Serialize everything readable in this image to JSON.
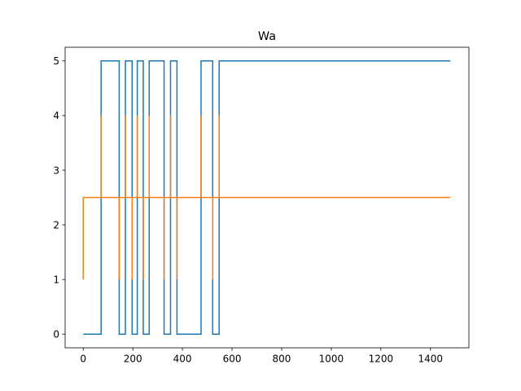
{
  "chart_data": {
    "type": "line",
    "title": "Wa",
    "xlabel": "",
    "ylabel": "",
    "xlim": [
      -73,
      1555
    ],
    "ylim": [
      -0.25,
      5.25
    ],
    "xticks": [
      0,
      200,
      400,
      600,
      800,
      1000,
      1200,
      1400
    ],
    "yticks": [
      0,
      1,
      2,
      3,
      4,
      5
    ],
    "grid": false,
    "series": [
      {
        "color": "#1f77b4",
        "step": true,
        "points": [
          [
            0,
            0
          ],
          [
            72,
            0
          ],
          [
            72,
            5
          ],
          [
            145,
            5
          ],
          [
            145,
            0
          ],
          [
            170,
            0
          ],
          [
            170,
            5
          ],
          [
            197,
            5
          ],
          [
            197,
            0
          ],
          [
            218,
            0
          ],
          [
            218,
            5
          ],
          [
            242,
            5
          ],
          [
            242,
            0
          ],
          [
            266,
            0
          ],
          [
            266,
            5
          ],
          [
            326,
            5
          ],
          [
            326,
            0
          ],
          [
            352,
            0
          ],
          [
            352,
            5
          ],
          [
            378,
            5
          ],
          [
            378,
            0
          ],
          [
            475,
            0
          ],
          [
            475,
            5
          ],
          [
            522,
            5
          ],
          [
            522,
            0
          ],
          [
            548,
            0
          ],
          [
            548,
            5
          ],
          [
            1480,
            5
          ]
        ]
      },
      {
        "color": "#ff7f0e",
        "step": true,
        "points": [
          [
            0,
            1
          ],
          [
            0,
            2.5
          ],
          [
            72,
            2.5
          ],
          [
            72,
            4
          ],
          [
            72,
            2.5
          ],
          [
            145,
            2.5
          ],
          [
            145,
            1
          ],
          [
            145,
            2.5
          ],
          [
            170,
            2.5
          ],
          [
            170,
            4
          ],
          [
            170,
            2.5
          ],
          [
            197,
            2.5
          ],
          [
            197,
            1
          ],
          [
            197,
            2.5
          ],
          [
            218,
            2.5
          ],
          [
            218,
            4
          ],
          [
            218,
            2.5
          ],
          [
            242,
            2.5
          ],
          [
            242,
            1
          ],
          [
            242,
            2.5
          ],
          [
            266,
            2.5
          ],
          [
            266,
            4
          ],
          [
            266,
            2.5
          ],
          [
            326,
            2.5
          ],
          [
            326,
            1
          ],
          [
            326,
            2.5
          ],
          [
            352,
            2.5
          ],
          [
            352,
            4
          ],
          [
            352,
            2.5
          ],
          [
            378,
            2.5
          ],
          [
            378,
            1
          ],
          [
            378,
            2.5
          ],
          [
            475,
            2.5
          ],
          [
            475,
            4
          ],
          [
            475,
            2.5
          ],
          [
            522,
            2.5
          ],
          [
            522,
            1
          ],
          [
            522,
            2.5
          ],
          [
            548,
            2.5
          ],
          [
            548,
            4
          ],
          [
            548,
            2.5
          ],
          [
            1480,
            2.5
          ]
        ]
      }
    ]
  }
}
